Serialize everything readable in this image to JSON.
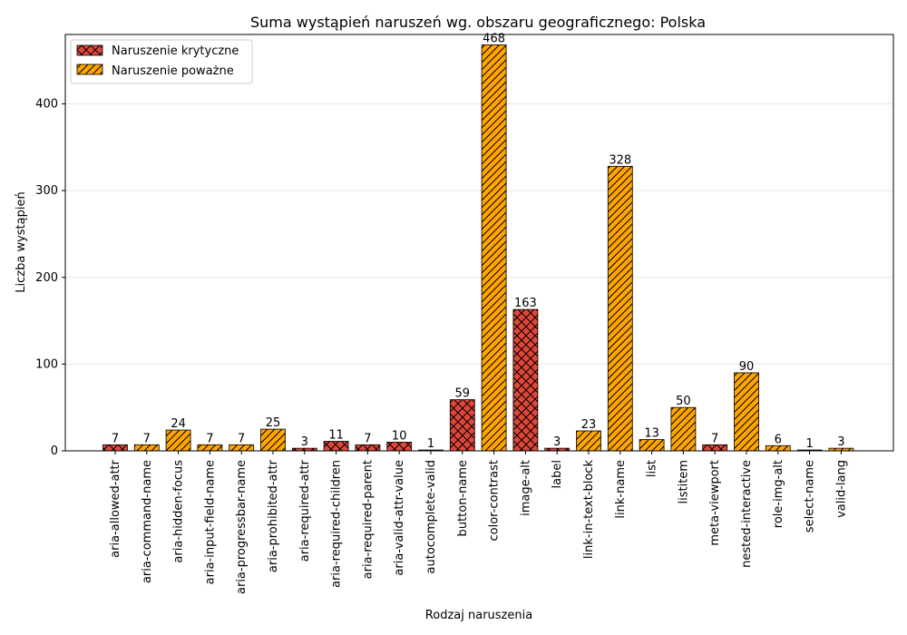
{
  "chart_data": {
    "type": "bar",
    "title": "Suma wystąpień naruszeń wg. obszaru geograficznego: Polska",
    "xlabel": "Rodzaj naruszenia",
    "ylabel": "Liczba wystąpień",
    "ylim": [
      0,
      480
    ],
    "yticks": [
      0,
      100,
      200,
      300,
      400
    ],
    "grid": "horizontal",
    "legend_position": "top-left",
    "series": [
      {
        "name": "Naruszenie krytyczne",
        "color": "#e0473a",
        "hatch": "cross"
      },
      {
        "name": "Naruszenie poważne",
        "color": "#ffa500",
        "hatch": "diagonal"
      }
    ],
    "categories": [
      "aria-allowed-attr",
      "aria-command-name",
      "aria-hidden-focus",
      "aria-input-field-name",
      "aria-progressbar-name",
      "aria-prohibited-attr",
      "aria-required-attr",
      "aria-required-children",
      "aria-required-parent",
      "aria-valid-attr-value",
      "autocomplete-valid",
      "button-name",
      "color-contrast",
      "image-alt",
      "label",
      "link-in-text-block",
      "link-name",
      "list",
      "listitem",
      "meta-viewport",
      "nested-interactive",
      "role-img-alt",
      "select-name",
      "valid-lang"
    ],
    "values": [
      7,
      7,
      24,
      7,
      7,
      25,
      3,
      11,
      7,
      10,
      1,
      59,
      468,
      163,
      3,
      23,
      328,
      13,
      50,
      7,
      90,
      6,
      1,
      3
    ],
    "series_index": [
      0,
      1,
      1,
      1,
      1,
      1,
      0,
      0,
      0,
      0,
      1,
      0,
      1,
      0,
      0,
      1,
      1,
      1,
      1,
      0,
      1,
      1,
      0,
      1
    ]
  }
}
